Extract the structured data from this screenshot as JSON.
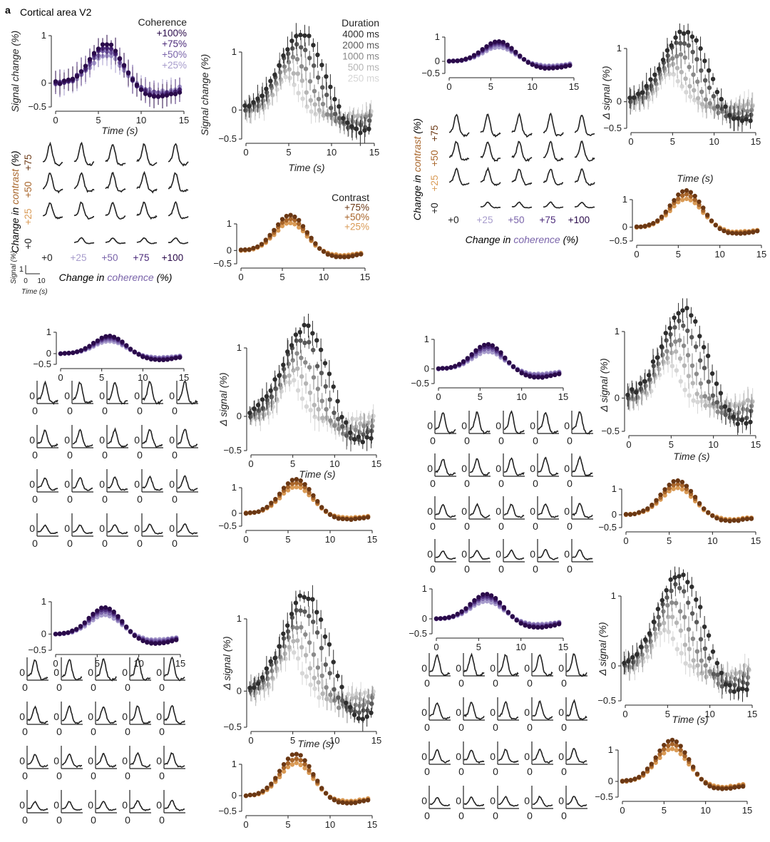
{
  "figure": {
    "panel_letter": "a",
    "title": "Cortical area V2",
    "colors": {
      "coherence": [
        "#2a0a4a",
        "#4b2a7a",
        "#7a64aa",
        "#a79ccc"
      ],
      "duration": [
        "#2e2e2e",
        "#5a5a5a",
        "#8a8a8a",
        "#b5b5b5",
        "#d6d6d6"
      ],
      "contrast": [
        "#6b3814",
        "#a8652a",
        "#d99a55"
      ],
      "trace": "#222222"
    }
  },
  "labels": {
    "coherence_title": "Coherence",
    "coherence_items": [
      "+100%",
      "+75%",
      "+50%",
      "+25%"
    ],
    "duration_title": "Duration",
    "duration_items": [
      "4000 ms",
      "2000 ms",
      "1000 ms",
      "500 ms",
      "250 ms"
    ],
    "contrast_title": "Contrast",
    "contrast_items": [
      "+75%",
      "+50%",
      "+25%"
    ],
    "signal_change": "Signal change (%)",
    "delta_signal": "Δ signal (%)",
    "time": "Time (s)",
    "change_in": "Change in ",
    "contrast_word": "contrast",
    "coherence_word": "coherence",
    "pct": " (%)",
    "contrast_levels": [
      "+75",
      "+50",
      "+25",
      "+0"
    ],
    "coherence_levels": [
      "+0",
      "+25",
      "+50",
      "+75",
      "+100"
    ],
    "zero": "0",
    "scale_signal": "Signal (%)",
    "scale_one": "1",
    "scale_ticks": [
      "0",
      "10"
    ],
    "scale_time": "Time (s)"
  },
  "chart_data": [
    {
      "type": "scatter",
      "role": "coherence",
      "x_range": [
        0,
        14.5
      ],
      "ylim": [
        -0.5,
        1
      ],
      "xlim": [
        0,
        15
      ],
      "xticks": [
        "0",
        "5",
        "10",
        "15"
      ],
      "yticks": [
        "1",
        "0",
        "−0.5"
      ],
      "series": [
        {
          "name": "+100%",
          "peak": 0.85,
          "trough": -0.3
        },
        {
          "name": "+75%",
          "peak": 0.78,
          "trough": -0.27
        },
        {
          "name": "+50%",
          "peak": 0.7,
          "trough": -0.22
        },
        {
          "name": "+25%",
          "peak": 0.6,
          "trough": -0.18
        }
      ]
    },
    {
      "type": "scatter",
      "role": "duration",
      "x_range": [
        0,
        14.5
      ],
      "ylim": [
        -0.5,
        1
      ],
      "xlim": [
        0,
        15
      ],
      "xticks": [
        "0",
        "5",
        "10",
        "15"
      ],
      "yticks": [
        "1",
        "0",
        "−0.5"
      ],
      "series": [
        {
          "name": "4000 ms",
          "peak": 1.35,
          "trough": -0.45
        },
        {
          "name": "2000 ms",
          "peak": 1.15,
          "trough": -0.35
        },
        {
          "name": "1000 ms",
          "peak": 0.9,
          "trough": -0.25
        },
        {
          "name": "500 ms",
          "peak": 0.7,
          "trough": -0.15
        },
        {
          "name": "250 ms",
          "peak": 0.55,
          "trough": -0.1
        }
      ]
    },
    {
      "type": "scatter",
      "role": "contrast",
      "x_range": [
        0,
        14.5
      ],
      "ylim": [
        -0.5,
        1
      ],
      "xlim": [
        0,
        15
      ],
      "xticks": [
        "0",
        "5",
        "10",
        "15"
      ],
      "yticks": [
        "1",
        "0",
        "−0.5"
      ],
      "series": [
        {
          "name": "+75%",
          "peak": 1.35,
          "trough": -0.25
        },
        {
          "name": "+50%",
          "peak": 1.2,
          "trough": -0.22
        },
        {
          "name": "+25%",
          "peak": 1.05,
          "trough": -0.18
        }
      ]
    },
    {
      "type": "line",
      "role": "response-grid",
      "rows": [
        "+75",
        "+50",
        "+25",
        "+0"
      ],
      "columns": [
        "+0",
        "+25",
        "+50",
        "+75",
        "+100"
      ]
    }
  ]
}
